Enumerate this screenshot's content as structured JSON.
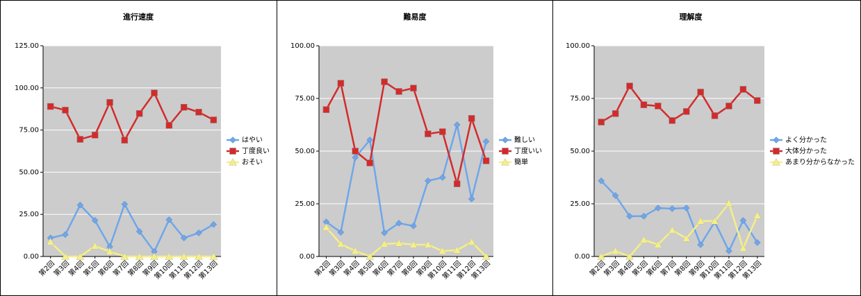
{
  "chart_data": [
    {
      "type": "line",
      "title": "進行速度",
      "categories": [
        "第2回",
        "第3回",
        "第4回",
        "第5回",
        "第6回",
        "第7回",
        "第8回",
        "第9回",
        "第10回",
        "第11回",
        "第12回",
        "第13回"
      ],
      "series": [
        {
          "name": "はやい",
          "color": "#6fa6ea",
          "marker": "diamond",
          "values": [
            11,
            13,
            30.5,
            21.4,
            5.8,
            31,
            14.8,
            2.9,
            21.8,
            11,
            14,
            19
          ]
        },
        {
          "name": "丁度良い",
          "color": "#d42a2a",
          "marker": "square",
          "values": [
            89,
            86.8,
            69.5,
            72,
            91.4,
            69,
            84.8,
            97,
            77.8,
            88.5,
            85.6,
            81
          ]
        },
        {
          "name": "おそい",
          "color": "#f5ef86",
          "marker": "triangle",
          "values": [
            8.6,
            0,
            0,
            6.2,
            2.9,
            0,
            0,
            0,
            0,
            0,
            0,
            0
          ]
        }
      ],
      "ylim": [
        0,
        125
      ],
      "yticks": [
        {
          "value": 0,
          "label": "0.00"
        },
        {
          "value": 25,
          "label": "25.00"
        },
        {
          "value": 50,
          "label": "50.00"
        },
        {
          "value": 75,
          "label": "75.00"
        },
        {
          "value": 100,
          "label": "100.00"
        },
        {
          "value": 125,
          "label": "125.00"
        }
      ],
      "grid": true
    },
    {
      "type": "line",
      "title": "難易度",
      "categories": [
        "第2回",
        "第3回",
        "第4回",
        "第5回",
        "第6回",
        "第7回",
        "第8回",
        "第9回",
        "第10回",
        "第11回",
        "第12回",
        "第13回"
      ],
      "series": [
        {
          "name": "難しい",
          "color": "#6fa6ea",
          "marker": "diamond",
          "values": [
            16.4,
            11.5,
            47,
            55.3,
            11.2,
            15.8,
            14.5,
            35.9,
            37.5,
            62.5,
            27.3,
            54.6
          ]
        },
        {
          "name": "丁度いい",
          "color": "#d42a2a",
          "marker": "square",
          "values": [
            69.7,
            82.2,
            50,
            44.4,
            82.9,
            78.3,
            79.9,
            58.2,
            59.2,
            34.5,
            65.5,
            45.4
          ]
        },
        {
          "name": "簡単",
          "color": "#f5ef86",
          "marker": "triangle",
          "values": [
            13.8,
            5.9,
            2.6,
            0,
            5.9,
            6.3,
            5.6,
            5.6,
            2.6,
            3,
            6.9,
            0
          ]
        }
      ],
      "ylim": [
        0,
        100
      ],
      "yticks": [
        {
          "value": 0,
          "label": "0.00"
        },
        {
          "value": 25,
          "label": "25.00"
        },
        {
          "value": 50,
          "label": "50.00"
        },
        {
          "value": 75,
          "label": "75.00"
        },
        {
          "value": 100,
          "label": "100.00"
        }
      ],
      "grid": true
    },
    {
      "type": "line",
      "title": "理解度",
      "categories": [
        "第2回",
        "第3回",
        "第4回",
        "第5回",
        "第6回",
        "第7回",
        "第8回",
        "第9回",
        "第10回",
        "第11回",
        "第12回",
        "第13回"
      ],
      "series": [
        {
          "name": "よく分かった",
          "color": "#6fa6ea",
          "marker": "diamond",
          "values": [
            35.9,
            28.9,
            19.1,
            19.1,
            23,
            22.7,
            23,
            5.6,
            16.4,
            2.6,
            17.1,
            6.6
          ]
        },
        {
          "name": "大体分かった",
          "color": "#d42a2a",
          "marker": "square",
          "values": [
            63.8,
            67.8,
            80.9,
            72,
            71.4,
            64.5,
            68.8,
            78,
            66.8,
            71.4,
            79.3,
            74
          ]
        },
        {
          "name": "あまり分からなかった",
          "color": "#f5ef86",
          "marker": "triangle",
          "values": [
            0,
            2.6,
            0,
            7.9,
            5.6,
            12.5,
            8.6,
            16.8,
            16.8,
            25.3,
            3.9,
            19.4
          ]
        }
      ],
      "ylim": [
        0,
        100
      ],
      "yticks": [
        {
          "value": 0,
          "label": "0.00"
        },
        {
          "value": 25,
          "label": "25.00"
        },
        {
          "value": 50,
          "label": "50.00"
        },
        {
          "value": 75,
          "label": "75.00"
        },
        {
          "value": 100,
          "label": "100.00"
        }
      ],
      "grid": true
    }
  ]
}
